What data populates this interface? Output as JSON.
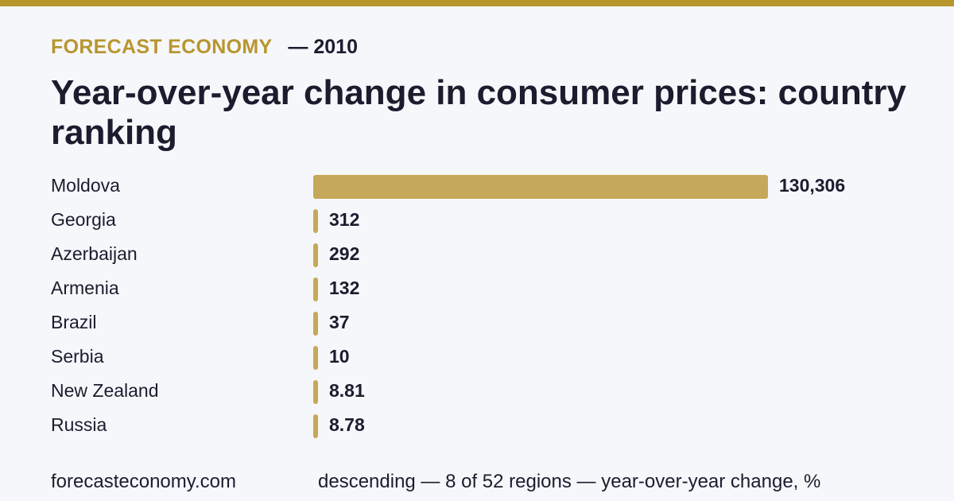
{
  "header": {
    "brand": "FORECAST ECONOMY",
    "year": "— 2010"
  },
  "colors": {
    "accent": "#b8962e",
    "bar": "#c6a85a",
    "text": "#1c1c2e",
    "background": "#f6f7fb"
  },
  "chart_data": {
    "type": "bar",
    "orientation": "horizontal",
    "title": "Year-over-year change in consumer prices: country ranking",
    "categories": [
      "Moldova",
      "Georgia",
      "Azerbaijan",
      "Armenia",
      "Brazil",
      "Serbia",
      "New Zealand",
      "Russia"
    ],
    "values": [
      130306,
      312,
      292,
      132,
      37,
      10,
      8.81,
      8.78
    ],
    "value_labels": [
      "130,306",
      "312",
      "292",
      "132",
      "37",
      "10",
      "8.81",
      "8.78"
    ],
    "xlim": [
      0,
      130306
    ],
    "grid": false,
    "legend": "none"
  },
  "footer": {
    "site": "forecasteconomy.com",
    "note": "descending — 8 of 52 regions — year-over-year change, %"
  }
}
